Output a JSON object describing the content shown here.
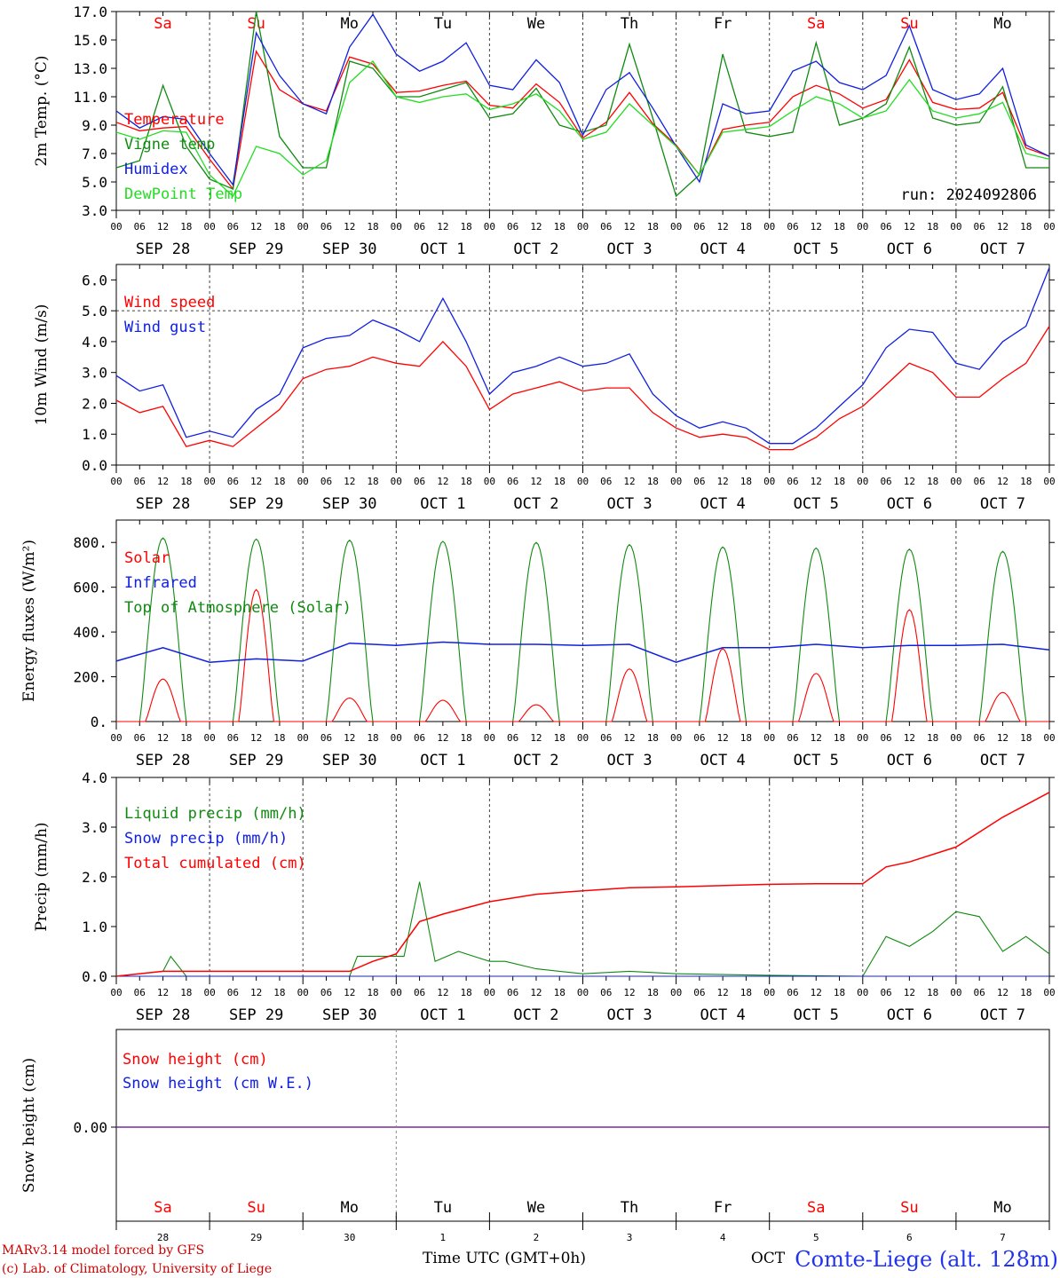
{
  "colors": {
    "red": "#ff0000",
    "green": "#108a10",
    "blue": "#1020e0",
    "lime": "#22dd22",
    "purple": "#7a2aa0"
  },
  "days": [
    {
      "abbr": "Sa",
      "weekend": true,
      "date": "SEP 28",
      "num": "28"
    },
    {
      "abbr": "Su",
      "weekend": true,
      "date": "SEP 29",
      "num": "29"
    },
    {
      "abbr": "Mo",
      "weekend": false,
      "date": "SEP 30",
      "num": "30"
    },
    {
      "abbr": "Tu",
      "weekend": false,
      "date": "OCT  1",
      "num": "1"
    },
    {
      "abbr": "We",
      "weekend": false,
      "date": "OCT  2",
      "num": "2"
    },
    {
      "abbr": "Th",
      "weekend": false,
      "date": "OCT  3",
      "num": "3"
    },
    {
      "abbr": "Fr",
      "weekend": false,
      "date": "OCT  4",
      "num": "4"
    },
    {
      "abbr": "Sa",
      "weekend": true,
      "date": "OCT  5",
      "num": "5"
    },
    {
      "abbr": "Su",
      "weekend": true,
      "date": "OCT  6",
      "num": "6"
    },
    {
      "abbr": "Mo",
      "weekend": false,
      "date": "OCT  7",
      "num": "7"
    }
  ],
  "hour_ticks": [
    "00",
    "06",
    "12",
    "18"
  ],
  "footer": {
    "model": "MARv3.14 model forced by GFS",
    "copyright": "(c) Lab. of Climatology, University of Liege",
    "xlabel": "Time UTC (GMT+0h)",
    "month": "OCT",
    "site": "Comte-Liege (alt. 128m)"
  },
  "chart_data": [
    {
      "type": "line",
      "ylabel": "2m Temp. (°C)",
      "ylim": [
        3,
        17
      ],
      "yticks": [
        "3.0",
        "5.0",
        "7.0",
        "9.0",
        "11.0",
        "13.0",
        "15.0",
        "17.0"
      ],
      "note": "run: 2024092806",
      "x_unit": "hours since SEP 28 00 UTC",
      "series": [
        {
          "name": "Temperature",
          "color": "red",
          "x": [
            0,
            6,
            12,
            18,
            24,
            30,
            36,
            42,
            48,
            54,
            60,
            66,
            72,
            78,
            84,
            90,
            96,
            102,
            108,
            114,
            120,
            126,
            132,
            138,
            144,
            150,
            156,
            162,
            168,
            174,
            180,
            186,
            192,
            198,
            204,
            210,
            216,
            222,
            228,
            234,
            240
          ],
          "y": [
            9.2,
            8.6,
            8.8,
            8.9,
            6.6,
            4.5,
            14.2,
            11.5,
            10.5,
            10.0,
            13.8,
            13.3,
            11.3,
            11.4,
            11.8,
            12.1,
            10.4,
            10.2,
            11.9,
            10.6,
            8.1,
            9.2,
            11.3,
            9.1,
            7.6,
            5.5,
            8.7,
            9.0,
            9.2,
            11.0,
            11.8,
            11.2,
            10.2,
            10.8,
            13.6,
            10.6,
            10.1,
            10.2,
            11.3,
            7.4,
            6.8
          ]
        },
        {
          "name": "Vigne temp",
          "color": "green",
          "x": [
            0,
            6,
            12,
            18,
            24,
            30,
            36,
            42,
            48,
            54,
            60,
            66,
            72,
            78,
            84,
            90,
            96,
            102,
            108,
            114,
            120,
            126,
            132,
            138,
            144,
            150,
            156,
            162,
            168,
            174,
            180,
            186,
            192,
            198,
            204,
            210,
            216,
            222,
            228,
            234,
            240
          ],
          "y": [
            6.0,
            6.5,
            11.8,
            7.5,
            5.2,
            4.5,
            17.0,
            8.2,
            6.0,
            6.0,
            13.5,
            13.0,
            11.0,
            11.0,
            11.5,
            12.0,
            9.5,
            9.8,
            11.6,
            9.0,
            8.5,
            9.0,
            14.7,
            9.5,
            4.0,
            5.5,
            14.0,
            8.5,
            8.2,
            8.5,
            14.8,
            9.0,
            9.5,
            10.5,
            14.5,
            9.5,
            9.0,
            9.2,
            11.7,
            6.0,
            6.0
          ]
        },
        {
          "name": "Humidex",
          "color": "blue",
          "x": [
            0,
            6,
            12,
            18,
            24,
            30,
            36,
            42,
            48,
            54,
            60,
            66,
            72,
            78,
            84,
            90,
            96,
            102,
            108,
            114,
            120,
            126,
            132,
            138,
            144,
            150,
            156,
            162,
            168,
            174,
            180,
            186,
            192,
            198,
            204,
            210,
            216,
            222,
            228,
            234,
            240
          ],
          "y": [
            10.0,
            8.8,
            9.6,
            9.4,
            7.0,
            4.8,
            15.5,
            12.5,
            10.5,
            9.8,
            14.5,
            16.8,
            14.0,
            12.8,
            13.5,
            14.8,
            11.8,
            11.5,
            13.6,
            12.0,
            8.3,
            11.5,
            12.7,
            10.2,
            7.5,
            5.0,
            10.5,
            9.8,
            10.0,
            12.8,
            13.5,
            12.0,
            11.5,
            12.5,
            16.0,
            11.5,
            10.8,
            11.2,
            13.0,
            7.6,
            6.8
          ]
        },
        {
          "name": "DewPoint Temp",
          "color": "lime",
          "x": [
            0,
            6,
            12,
            18,
            24,
            30,
            36,
            42,
            48,
            54,
            60,
            66,
            72,
            78,
            84,
            90,
            96,
            102,
            108,
            114,
            120,
            126,
            132,
            138,
            144,
            150,
            156,
            162,
            168,
            174,
            180,
            186,
            192,
            198,
            204,
            210,
            216,
            222,
            228,
            234,
            240
          ],
          "y": [
            8.5,
            8.0,
            8.6,
            8.5,
            5.5,
            4.0,
            7.5,
            7.0,
            5.5,
            6.5,
            12.0,
            13.5,
            11.0,
            10.6,
            11.0,
            11.2,
            10.1,
            10.5,
            11.2,
            10.0,
            8.0,
            8.5,
            10.5,
            9.0,
            7.5,
            5.5,
            8.5,
            8.7,
            8.9,
            10.0,
            11.0,
            10.5,
            9.5,
            10.0,
            12.2,
            10.0,
            9.5,
            9.8,
            10.6,
            7.0,
            6.6
          ]
        }
      ]
    },
    {
      "type": "line",
      "ylabel": "10m Wind (m/s)",
      "ylim": [
        0,
        6.5
      ],
      "yticks": [
        "0.0",
        "1.0",
        "2.0",
        "3.0",
        "4.0",
        "5.0",
        "6.0"
      ],
      "reference_line": 5.0,
      "x_unit": "hours since SEP 28 00 UTC",
      "series": [
        {
          "name": "Wind speed",
          "color": "red",
          "x": [
            0,
            6,
            12,
            18,
            24,
            30,
            36,
            42,
            48,
            54,
            60,
            66,
            72,
            78,
            84,
            90,
            96,
            102,
            108,
            114,
            120,
            126,
            132,
            138,
            144,
            150,
            156,
            162,
            168,
            174,
            180,
            186,
            192,
            198,
            204,
            210,
            216,
            222,
            228,
            234,
            240
          ],
          "y": [
            2.1,
            1.7,
            1.9,
            0.6,
            0.8,
            0.6,
            1.2,
            1.8,
            2.8,
            3.1,
            3.2,
            3.5,
            3.3,
            3.2,
            4.0,
            3.2,
            1.8,
            2.3,
            2.5,
            2.7,
            2.4,
            2.5,
            2.5,
            1.7,
            1.2,
            0.9,
            1.0,
            0.9,
            0.5,
            0.5,
            0.9,
            1.5,
            1.9,
            2.6,
            3.3,
            3.0,
            2.2,
            2.2,
            2.8,
            3.3,
            4.5
          ]
        },
        {
          "name": "Wind gust",
          "color": "blue",
          "x": [
            0,
            6,
            12,
            18,
            24,
            30,
            36,
            42,
            48,
            54,
            60,
            66,
            72,
            78,
            84,
            90,
            96,
            102,
            108,
            114,
            120,
            126,
            132,
            138,
            144,
            150,
            156,
            162,
            168,
            174,
            180,
            186,
            192,
            198,
            204,
            210,
            216,
            222,
            228,
            234,
            240
          ],
          "y": [
            2.9,
            2.4,
            2.6,
            0.9,
            1.1,
            0.9,
            1.8,
            2.3,
            3.8,
            4.1,
            4.2,
            4.7,
            4.4,
            4.0,
            5.4,
            4.0,
            2.3,
            3.0,
            3.2,
            3.5,
            3.2,
            3.3,
            3.6,
            2.3,
            1.6,
            1.2,
            1.4,
            1.2,
            0.7,
            0.7,
            1.2,
            1.9,
            2.6,
            3.8,
            4.4,
            4.3,
            3.3,
            3.1,
            4.0,
            4.5,
            6.4
          ]
        }
      ]
    },
    {
      "type": "line",
      "ylabel": "Energy fluxes (W/m²)",
      "ylim": [
        0,
        900
      ],
      "yticks": [
        "0.",
        "200.",
        "400.",
        "600.",
        "800."
      ],
      "x_unit": "hours since SEP 28 00 UTC",
      "series": [
        {
          "name": "Solar",
          "color": "red",
          "day_peaks": [
            190,
            590,
            105,
            95,
            75,
            235,
            325,
            215,
            500,
            130
          ]
        },
        {
          "name": "Infrared",
          "color": "blue",
          "x": [
            0,
            12,
            24,
            36,
            48,
            60,
            72,
            84,
            96,
            108,
            120,
            132,
            144,
            156,
            168,
            180,
            192,
            204,
            216,
            228,
            240
          ],
          "y": [
            270,
            330,
            265,
            280,
            270,
            350,
            340,
            355,
            345,
            345,
            340,
            345,
            265,
            330,
            330,
            345,
            330,
            340,
            340,
            345,
            320
          ]
        },
        {
          "name": "Top of Atmosphere (Solar)",
          "color": "green",
          "day_peaks": [
            820,
            815,
            810,
            805,
            800,
            790,
            780,
            775,
            770,
            760
          ]
        }
      ]
    },
    {
      "type": "line",
      "ylabel": "Precip (mm/h)",
      "ylim": [
        0,
        4.0
      ],
      "yticks": [
        "0.0",
        "1.0",
        "2.0",
        "3.0",
        "4.0"
      ],
      "x_unit": "hours since SEP 28 00 UTC",
      "series": [
        {
          "name": "Liquid precip (mm/h)",
          "color": "green",
          "x": [
            0,
            6,
            12,
            14,
            18,
            60,
            62,
            68,
            74,
            78,
            82,
            88,
            92,
            96,
            100,
            108,
            120,
            132,
            144,
            168,
            192,
            198,
            204,
            210,
            216,
            222,
            228,
            234,
            240
          ],
          "y": [
            0,
            0.05,
            0.1,
            0.4,
            0,
            0,
            0.4,
            0.4,
            0.4,
            1.9,
            0.3,
            0.5,
            0.4,
            0.3,
            0.3,
            0.15,
            0.05,
            0.1,
            0.05,
            0.02,
            0,
            0.8,
            0.6,
            0.9,
            1.3,
            1.2,
            0.5,
            0.8,
            0.45
          ]
        },
        {
          "name": "Snow precip (mm/h)",
          "color": "blue",
          "x": [
            0,
            240
          ],
          "y": [
            0,
            0
          ]
        },
        {
          "name": "Total cumulated (cm)",
          "color": "red",
          "x": [
            0,
            12,
            18,
            60,
            66,
            72,
            78,
            84,
            96,
            108,
            120,
            132,
            144,
            168,
            180,
            192,
            198,
            204,
            216,
            228,
            240
          ],
          "y": [
            0,
            0.1,
            0.1,
            0.1,
            0.3,
            0.45,
            1.1,
            1.25,
            1.5,
            1.65,
            1.72,
            1.78,
            1.8,
            1.85,
            1.86,
            1.86,
            2.2,
            2.3,
            2.6,
            3.2,
            3.7
          ]
        }
      ]
    },
    {
      "type": "line",
      "ylabel": "Snow height (cm)",
      "yticks": [
        "0.00"
      ],
      "series": [
        {
          "name": "Snow height (cm)",
          "color": "red",
          "x": [
            0,
            240
          ],
          "y": [
            0,
            0
          ]
        },
        {
          "name": "Snow height (cm W.E.)",
          "color": "blue",
          "x": [
            0,
            240
          ],
          "y": [
            0,
            0
          ]
        }
      ]
    }
  ]
}
